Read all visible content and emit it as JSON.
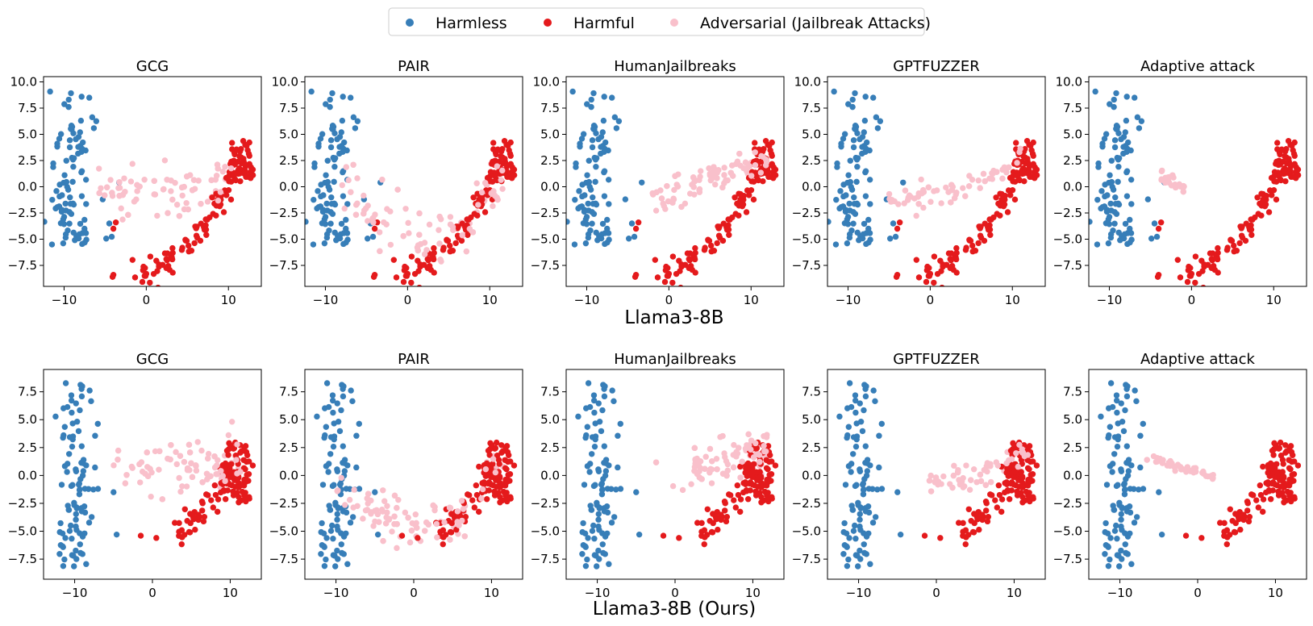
{
  "legend": {
    "items": [
      {
        "label": "Harmless",
        "color": "#377eb8"
      },
      {
        "label": "Harmful",
        "color": "#e41a1c"
      },
      {
        "label": "Adversarial (Jailbreak Attacks)",
        "color": "#f9c0cb"
      }
    ]
  },
  "rows": [
    {
      "label": "Llama3-8B"
    },
    {
      "label": "Llama3-8B (Ours)"
    }
  ],
  "chart_data": [
    {
      "type": "scatter",
      "row": 0,
      "col": 0,
      "title": "GCG",
      "xlim": [
        -12.5,
        14
      ],
      "ylim": [
        -9.5,
        10.5
      ],
      "xticks": [
        -10,
        0,
        10
      ],
      "xtick_labels": [
        "−10",
        "0",
        "10"
      ],
      "yticks": [
        10,
        7.5,
        5,
        2.5,
        0,
        -2.5,
        -5,
        -7.5
      ],
      "ytick_labels": [
        "10.0",
        "7.5",
        "5.0",
        "2.5",
        "0.0",
        "−2.5",
        "−5.0",
        "−7.5"
      ],
      "series": [
        {
          "name": "Harmless"
        },
        {
          "name": "Harmful"
        },
        {
          "name": "Adversarial (Jailbreak Attacks)",
          "shape": "arc",
          "center": [
            5,
            0.3
          ],
          "spread": 1.3,
          "n": 70
        }
      ],
      "description_note": ""
    },
    {
      "type": "scatter",
      "row": 0,
      "col": 1,
      "title": "PAIR",
      "xlim": [
        -12.5,
        14
      ],
      "ylim": [
        -9.5,
        10.5
      ],
      "xticks": [
        -10,
        0,
        10
      ],
      "xtick_labels": [
        "−10",
        "0",
        "10"
      ],
      "yticks": [
        10,
        7.5,
        5,
        2.5,
        0,
        -2.5,
        -5,
        -7.5
      ],
      "ytick_labels": [
        "10.0",
        "7.5",
        "5.0",
        "2.5",
        "0.0",
        "−2.5",
        "−5.0",
        "−7.5"
      ],
      "series": [
        {
          "name": "Harmless"
        },
        {
          "name": "Harmful"
        },
        {
          "name": "Adversarial (Jailbreak Attacks)",
          "shape": "pair",
          "n": 80
        }
      ],
      "description_note": ""
    },
    {
      "type": "scatter",
      "row": 0,
      "col": 2,
      "title": "HumanJailbreaks",
      "xlim": [
        -12.5,
        14
      ],
      "ylim": [
        -9.5,
        10.5
      ],
      "xticks": [
        -10,
        0,
        10
      ],
      "xtick_labels": [
        "−10",
        "0",
        "10"
      ],
      "yticks": [
        10,
        7.5,
        5,
        2.5,
        0,
        -2.5,
        -5,
        -7.5
      ],
      "ytick_labels": [
        "10.0",
        "7.5",
        "5.0",
        "2.5",
        "0.0",
        "−2.5",
        "−5.0",
        "−7.5"
      ],
      "series": [
        {
          "name": "Harmless"
        },
        {
          "name": "Harmful"
        },
        {
          "name": "Adversarial (Jailbreak Attacks)",
          "shape": "human",
          "n": 80
        }
      ],
      "description_note": ""
    },
    {
      "type": "scatter",
      "row": 0,
      "col": 3,
      "title": "GPTFUZZER",
      "xlim": [
        -12.5,
        14
      ],
      "ylim": [
        -9.5,
        10.5
      ],
      "xticks": [
        -10,
        0,
        10
      ],
      "xtick_labels": [
        "−10",
        "0",
        "10"
      ],
      "yticks": [
        10,
        7.5,
        5,
        2.5,
        0,
        -2.5,
        -5,
        -7.5
      ],
      "ytick_labels": [
        "10.0",
        "7.5",
        "5.0",
        "2.5",
        "0.0",
        "−2.5",
        "−5.0",
        "−7.5"
      ],
      "series": [
        {
          "name": "Harmless"
        },
        {
          "name": "Harmful"
        },
        {
          "name": "Adversarial (Jailbreak Attacks)",
          "shape": "fuzzer",
          "n": 60
        }
      ],
      "description_note": ""
    },
    {
      "type": "scatter",
      "row": 0,
      "col": 4,
      "title": "Adaptive attack",
      "xlim": [
        -12.5,
        14
      ],
      "ylim": [
        -9.5,
        10.5
      ],
      "xticks": [
        -10,
        0,
        10
      ],
      "xtick_labels": [
        "−10",
        "0",
        "10"
      ],
      "yticks": [
        10,
        7.5,
        5,
        2.5,
        0,
        -2.5,
        -5,
        -7.5
      ],
      "ytick_labels": [
        "10.0",
        "7.5",
        "5.0",
        "2.5",
        "0.0",
        "−2.5",
        "−5.0",
        "−7.5"
      ],
      "series": [
        {
          "name": "Harmless"
        },
        {
          "name": "Harmful"
        },
        {
          "name": "Adversarial (Jailbreak Attacks)",
          "shape": "adaptive",
          "n": 25
        }
      ],
      "description_note": ""
    },
    {
      "type": "scatter",
      "row": 1,
      "col": 0,
      "title": "GCG",
      "xlim": [
        -14,
        14
      ],
      "ylim": [
        -9.3,
        9.5
      ],
      "xticks": [
        -10,
        0,
        10
      ],
      "xtick_labels": [
        "−10",
        "0",
        "10"
      ],
      "yticks": [
        7.5,
        5,
        2.5,
        0,
        -2.5,
        -5,
        -7.5
      ],
      "ytick_labels": [
        "7.5",
        "5.0",
        "2.5",
        "0.0",
        "−2.5",
        "−5.0",
        "−7.5"
      ],
      "series": [
        {
          "name": "Harmless"
        },
        {
          "name": "Harmful"
        },
        {
          "name": "Adversarial (Jailbreak Attacks)",
          "shape": "gcg2",
          "n": 75
        }
      ],
      "description_note": ""
    },
    {
      "type": "scatter",
      "row": 1,
      "col": 1,
      "title": "PAIR",
      "xlim": [
        -14,
        14
      ],
      "ylim": [
        -9.3,
        9.5
      ],
      "xticks": [
        -10,
        0,
        10
      ],
      "xtick_labels": [
        "−10",
        "0",
        "10"
      ],
      "yticks": [
        7.5,
        5,
        2.5,
        0,
        -2.5,
        -5,
        -7.5
      ],
      "ytick_labels": [
        "7.5",
        "5.0",
        "2.5",
        "0.0",
        "−2.5",
        "−5.0",
        "−7.5"
      ],
      "series": [
        {
          "name": "Harmless"
        },
        {
          "name": "Harmful"
        },
        {
          "name": "Adversarial (Jailbreak Attacks)",
          "shape": "pair2",
          "n": 90
        }
      ],
      "description_note": ""
    },
    {
      "type": "scatter",
      "row": 1,
      "col": 2,
      "title": "HumanJailbreaks",
      "xlim": [
        -14,
        14
      ],
      "ylim": [
        -9.3,
        9.5
      ],
      "xticks": [
        -10,
        0,
        10
      ],
      "xtick_labels": [
        "−10",
        "0",
        "10"
      ],
      "yticks": [
        7.5,
        5,
        2.5,
        0,
        -2.5,
        -5,
        -7.5
      ],
      "ytick_labels": [
        "7.5",
        "5.0",
        "2.5",
        "0.0",
        "−2.5",
        "−5.0",
        "−7.5"
      ],
      "series": [
        {
          "name": "Harmless"
        },
        {
          "name": "Harmful"
        },
        {
          "name": "Adversarial (Jailbreak Attacks)",
          "shape": "human2",
          "n": 85
        }
      ],
      "description_note": ""
    },
    {
      "type": "scatter",
      "row": 1,
      "col": 3,
      "title": "GPTFUZZER",
      "xlim": [
        -14,
        14
      ],
      "ylim": [
        -9.3,
        9.5
      ],
      "xticks": [
        -10,
        0,
        10
      ],
      "xtick_labels": [
        "−10",
        "0",
        "10"
      ],
      "yticks": [
        7.5,
        5,
        2.5,
        0,
        -2.5,
        -5,
        -7.5
      ],
      "ytick_labels": [
        "7.5",
        "5.0",
        "2.5",
        "0.0",
        "−2.5",
        "−5.0",
        "−7.5"
      ],
      "series": [
        {
          "name": "Harmless"
        },
        {
          "name": "Harmful"
        },
        {
          "name": "Adversarial (Jailbreak Attacks)",
          "shape": "fuzzer2",
          "n": 60
        }
      ],
      "description_note": ""
    },
    {
      "type": "scatter",
      "row": 1,
      "col": 4,
      "title": "Adaptive attack",
      "xlim": [
        -14,
        14
      ],
      "ylim": [
        -9.3,
        9.5
      ],
      "xticks": [
        -10,
        0,
        10
      ],
      "xtick_labels": [
        "−10",
        "0",
        "10"
      ],
      "yticks": [
        7.5,
        5,
        2.5,
        0,
        -2.5,
        -5,
        -7.5
      ],
      "ytick_labels": [
        "7.5",
        "5.0",
        "2.5",
        "0.0",
        "−2.5",
        "−5.0",
        "−7.5"
      ],
      "series": [
        {
          "name": "Harmless"
        },
        {
          "name": "Harmful"
        },
        {
          "name": "Adversarial (Jailbreak Attacks)",
          "shape": "adaptive2",
          "n": 40
        }
      ],
      "description_note": ""
    }
  ]
}
